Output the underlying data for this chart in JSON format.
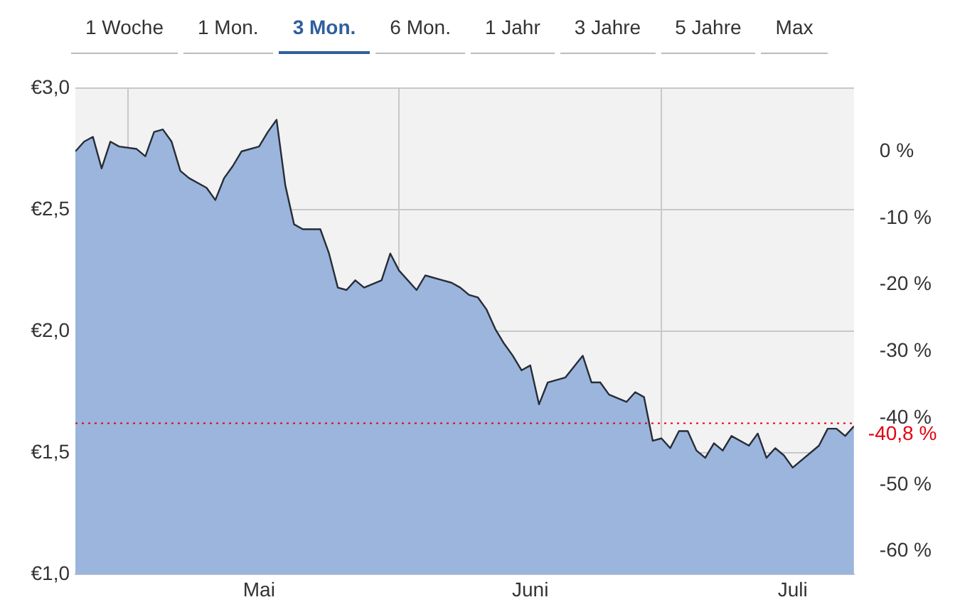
{
  "chart_data": {
    "type": "area",
    "annotations": [
      "1 Woche",
      "1 Mon.",
      "3 Mon.",
      "6 Mon.",
      "1 Jahr",
      "3 Jahre",
      "5 Jahre",
      "Max"
    ],
    "x": [
      "--04-25",
      "--04-26",
      "--04-27",
      "--04-28",
      "--04-29",
      "--04-30",
      "--05-02",
      "--05-03",
      "--05-04",
      "--05-05",
      "--05-06",
      "--05-07",
      "--05-08",
      "--05-10",
      "--05-11",
      "--05-12",
      "--05-13",
      "--05-14",
      "--05-16",
      "--05-17",
      "--05-18",
      "--05-19",
      "--05-20",
      "--05-21",
      "--05-23",
      "--05-24",
      "--05-25",
      "--05-26",
      "--05-27",
      "--05-28",
      "--05-30",
      "--05-31",
      "--06-01",
      "--06-03",
      "--06-04",
      "--06-06",
      "--06-07",
      "--06-08",
      "--06-09",
      "--06-10",
      "--06-11",
      "--06-12",
      "--06-13",
      "--06-14",
      "--06-15",
      "--06-16",
      "--06-17",
      "--06-18",
      "--06-20",
      "--06-22",
      "--06-23",
      "--06-24",
      "--06-25",
      "--06-27",
      "--06-28",
      "--06-29",
      "--06-30",
      "--07-01",
      "--07-02",
      "--07-03",
      "--07-04",
      "--07-05",
      "--07-06",
      "--07-07",
      "--07-08",
      "--07-09",
      "--07-11",
      "--07-12",
      "--07-13",
      "--07-14",
      "--07-15",
      "--07-16",
      "--07-19",
      "--07-20",
      "--07-21",
      "--07-22",
      "--07-23"
    ],
    "series": [
      {
        "color": "#9bb5dd",
        "values": [
          2.74,
          2.78,
          2.8,
          2.67,
          2.78,
          2.76,
          2.75,
          2.72,
          2.82,
          2.83,
          2.78,
          2.66,
          2.63,
          2.59,
          2.54,
          2.63,
          2.68,
          2.74,
          2.76,
          2.82,
          2.87,
          2.6,
          2.44,
          2.42,
          2.42,
          2.32,
          2.18,
          2.17,
          2.21,
          2.18,
          2.21,
          2.32,
          2.25,
          2.17,
          2.23,
          2.21,
          2.2,
          2.18,
          2.15,
          2.14,
          2.09,
          2.01,
          1.95,
          1.9,
          1.84,
          1.86,
          1.7,
          1.79,
          1.81,
          1.9,
          1.79,
          1.79,
          1.74,
          1.71,
          1.75,
          1.73,
          1.55,
          1.56,
          1.52,
          1.59,
          1.59,
          1.51,
          1.48,
          1.54,
          1.51,
          1.57,
          1.53,
          1.58,
          1.48,
          1.52,
          1.49,
          1.44,
          1.53,
          1.6,
          1.6,
          1.57,
          1.61
        ]
      }
    ],
    "xlim": [
      "--04-25",
      "--07-23"
    ],
    "xticks": [
      {
        "value": "--05-01",
        "label": null
      },
      {
        "value": "--05-16",
        "label": "Mai"
      },
      {
        "value": "--06-01",
        "label": null
      },
      {
        "value": "--06-16",
        "label": "Juni"
      },
      {
        "value": "--07-01",
        "label": null
      },
      {
        "value": "--07-16",
        "label": "Juli"
      }
    ],
    "ylim": [
      1,
      3
    ],
    "yticks": [
      {
        "value": 1,
        "label": "€1,0"
      },
      {
        "value": 1.5,
        "label": "€1,5"
      },
      {
        "value": 2,
        "label": "€2,0"
      },
      {
        "value": 2.5,
        "label": "€2,5"
      },
      {
        "value": 3,
        "label": "€3,0"
      }
    ],
    "y2lim": [
      -63.5,
      9.5
    ],
    "y2ticks": [
      {
        "value": 0,
        "label": "0 %"
      },
      {
        "value": -10,
        "label": "-10 %"
      },
      {
        "value": -20,
        "label": "-20 %"
      },
      {
        "value": -30,
        "label": "-30 %"
      },
      {
        "value": -40,
        "label": "-40 %"
      },
      {
        "value": -50,
        "label": "-50 %"
      },
      {
        "value": -60,
        "label": "-60 %"
      }
    ],
    "ref_lines": [
      {
        "axis": "y2",
        "value": -40.8,
        "label": "-40,8 %",
        "color": "#e3000f",
        "line_style": "dotted"
      }
    ],
    "grid": true,
    "legend": false
  }
}
